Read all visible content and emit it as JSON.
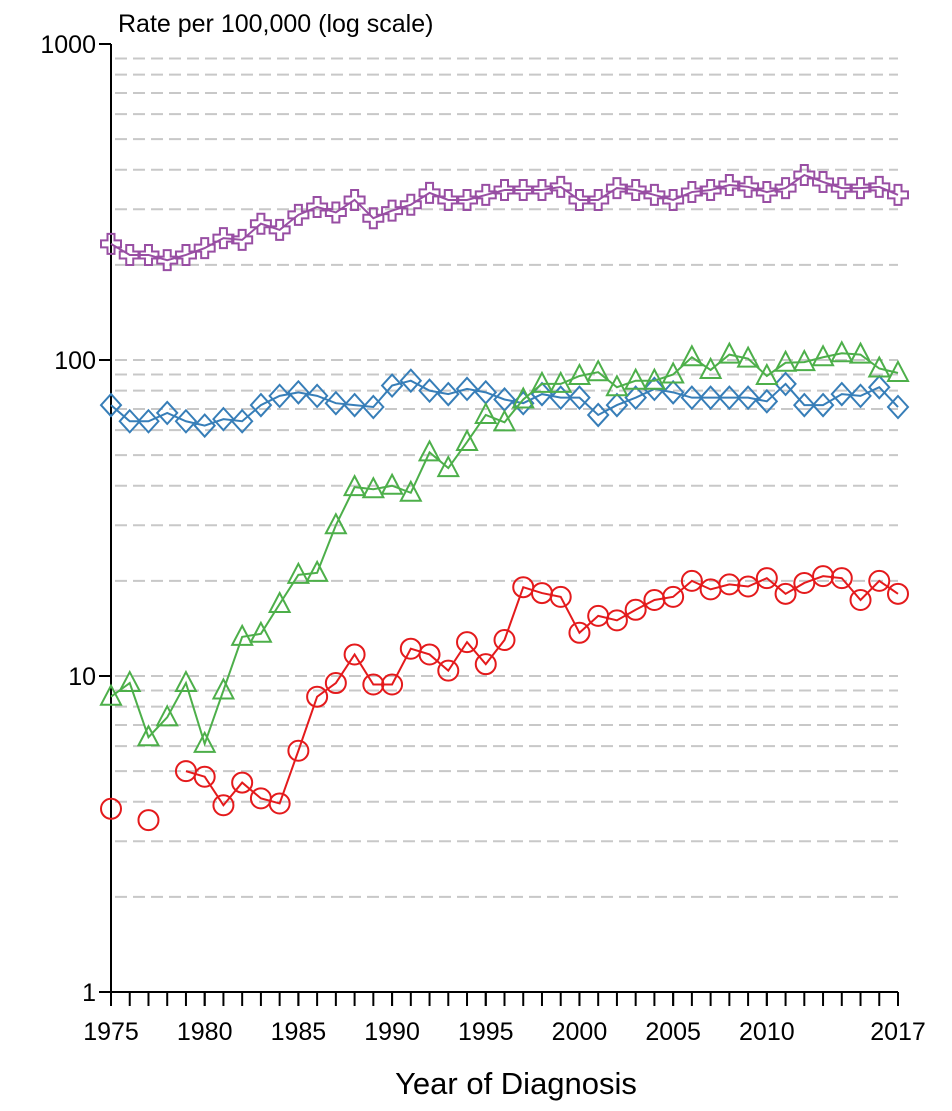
{
  "chart_data": {
    "type": "line",
    "title": "Rate per 100,000 (log scale)",
    "x_label": "Year of Diagnosis",
    "log_y": true,
    "grid": true,
    "ylim": [
      1,
      1000
    ],
    "yticks": [
      1,
      10,
      100,
      1000
    ],
    "yminorticks": [
      2,
      3,
      4,
      5,
      6,
      7,
      8,
      9,
      10,
      20,
      30,
      40,
      50,
      60,
      70,
      80,
      90,
      100,
      200,
      300,
      400,
      500,
      600,
      700,
      800,
      900
    ],
    "xlim": [
      1975,
      2017
    ],
    "xticks": [
      1975,
      1980,
      1985,
      1990,
      1995,
      2000,
      2005,
      2010,
      2017
    ],
    "x": [
      1975,
      1976,
      1977,
      1978,
      1979,
      1980,
      1981,
      1982,
      1983,
      1984,
      1985,
      1986,
      1987,
      1988,
      1989,
      1990,
      1991,
      1992,
      1993,
      1994,
      1995,
      1996,
      1997,
      1998,
      1999,
      2000,
      2001,
      2002,
      2003,
      2004,
      2005,
      2006,
      2007,
      2008,
      2009,
      2010,
      2011,
      2012,
      2013,
      2014,
      2015,
      2016,
      2017
    ],
    "series": [
      {
        "color": "#984ea3",
        "marker": "plus",
        "values": [
          233,
          215,
          215,
          207,
          215,
          226,
          243,
          240,
          270,
          258,
          288,
          305,
          293,
          321,
          281,
          297,
          310,
          338,
          321,
          321,
          333,
          345,
          345,
          345,
          353,
          321,
          321,
          350,
          345,
          333,
          321,
          340,
          345,
          358,
          353,
          340,
          350,
          385,
          366,
          350,
          350,
          353,
          333
        ]
      },
      {
        "color": "#377eb8",
        "marker": "diamond",
        "values": [
          72,
          64,
          64,
          68,
          64,
          62,
          65,
          64,
          72,
          77,
          79,
          77,
          73,
          72,
          71,
          83,
          86,
          80,
          78,
          81,
          79,
          75,
          73,
          78,
          76,
          76,
          67,
          72,
          76,
          81,
          79,
          76,
          76,
          76,
          76,
          74,
          84,
          72,
          72,
          78,
          77,
          82,
          71
        ]
      },
      {
        "color": "#4daf4a",
        "marker": "triangle",
        "values": [
          8.6,
          9.5,
          6.4,
          7.4,
          9.5,
          6.1,
          9.0,
          13.3,
          13.6,
          16.9,
          20.9,
          21.2,
          30,
          39.6,
          39,
          40,
          38,
          51,
          45.5,
          55,
          67,
          63.5,
          75,
          84,
          84,
          89,
          91.5,
          82,
          86,
          86,
          90,
          102,
          93,
          104,
          101,
          89,
          98,
          98.5,
          102,
          105,
          104,
          94,
          91
        ]
      },
      {
        "color": "#e41a1c",
        "marker": "circle",
        "values": [
          3.8,
          null,
          3.5,
          null,
          5.0,
          4.8,
          3.9,
          4.6,
          4.1,
          3.95,
          5.8,
          8.6,
          9.5,
          11.7,
          9.4,
          9.4,
          12.2,
          11.7,
          10.4,
          12.8,
          10.9,
          13.0,
          19.1,
          18.3,
          17.8,
          13.7,
          15.5,
          15.0,
          16.2,
          17.4,
          17.8,
          20.0,
          18.8,
          19.5,
          19.2,
          20.4,
          18.2,
          19.7,
          20.7,
          20.4,
          17.4,
          20.0,
          18.2
        ]
      }
    ]
  }
}
